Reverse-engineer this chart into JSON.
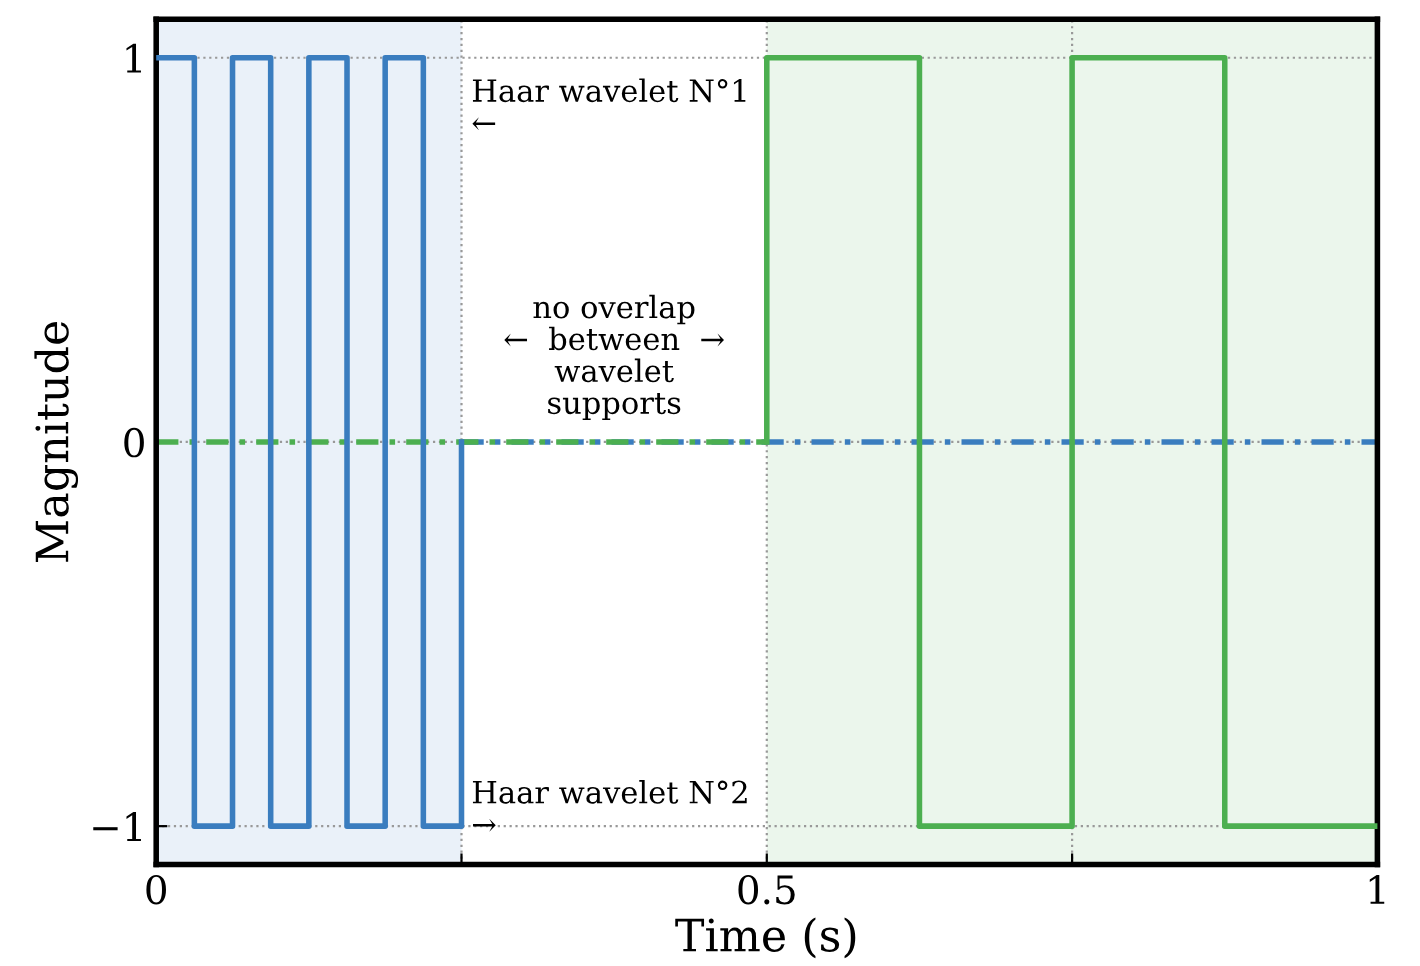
{
  "chart_data": {
    "type": "step",
    "xlabel": "Time (s)",
    "ylabel": "Magnitude",
    "xlim": [
      0,
      1
    ],
    "ylim": [
      -1.1,
      1.1
    ],
    "xticks": [
      0,
      {
        "value": 0.25,
        "label": null
      },
      0.5,
      {
        "value": 0.75,
        "label": null
      },
      1
    ],
    "yticks": [
      {
        "value": -1,
        "label": "−1"
      },
      0,
      1
    ],
    "grid": true,
    "series": [
      {
        "color": "#3a7dbf",
        "line_style": "solid",
        "x": [
          0,
          0.03125,
          0.0625,
          0.09375,
          0.125,
          0.15625,
          0.1875,
          0.21875,
          0.25
        ],
        "values": [
          1,
          -1,
          1,
          -1,
          1,
          -1,
          1,
          -1,
          0
        ]
      },
      {
        "color": "#3a7dbf",
        "line_style": "dashed",
        "x": [
          0.25,
          1
        ],
        "values": [
          0,
          0
        ]
      },
      {
        "color": "#4caf50",
        "line_style": "dashed",
        "x": [
          0,
          0.5
        ],
        "values": [
          0,
          0
        ]
      },
      {
        "color": "#4caf50",
        "line_style": "solid",
        "x": [
          0.5,
          0.5,
          0.625,
          0.75,
          0.875,
          1
        ],
        "values": [
          0,
          1,
          -1,
          1,
          -1,
          -1
        ]
      }
    ],
    "bands": [
      {
        "axis": "x",
        "from": 0,
        "to": 0.25,
        "color": "#eaf1f9"
      },
      {
        "axis": "x",
        "from": 0.5,
        "to": 1,
        "color": "#ebf6ec"
      }
    ],
    "annotations": [
      "Haar wavelet N°1\n←",
      "no overlap\n←  between  →\nwavelet\nsupports",
      "Haar wavelet N°2\n→"
    ]
  }
}
